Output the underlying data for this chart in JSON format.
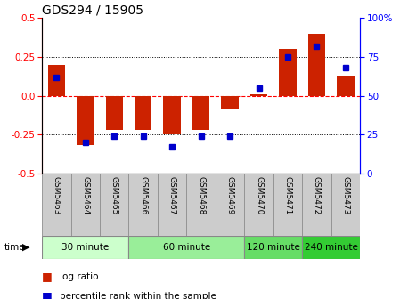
{
  "title": "GDS294 / 15905",
  "samples": [
    "GSM5463",
    "GSM5464",
    "GSM5465",
    "GSM5466",
    "GSM5467",
    "GSM5468",
    "GSM5469",
    "GSM5470",
    "GSM5471",
    "GSM5472",
    "GSM5473"
  ],
  "log_ratio": [
    0.2,
    -0.32,
    -0.22,
    -0.22,
    -0.25,
    -0.22,
    -0.09,
    0.01,
    0.3,
    0.4,
    0.13
  ],
  "percentile": [
    62,
    20,
    24,
    24,
    17,
    24,
    24,
    55,
    75,
    82,
    68
  ],
  "groups": [
    {
      "label": "30 minute",
      "start": 0,
      "end": 3,
      "color": "#ccffcc"
    },
    {
      "label": "60 minute",
      "start": 3,
      "end": 7,
      "color": "#99ee99"
    },
    {
      "label": "120 minute",
      "start": 7,
      "end": 9,
      "color": "#66dd66"
    },
    {
      "label": "240 minute",
      "start": 9,
      "end": 11,
      "color": "#33cc33"
    }
  ],
  "bar_color": "#cc2200",
  "dot_color": "#0000cc",
  "ylim_left": [
    -0.5,
    0.5
  ],
  "ylim_right": [
    0,
    100
  ],
  "yticks_left": [
    -0.5,
    -0.25,
    0.0,
    0.25,
    0.5
  ],
  "yticks_right": [
    0,
    25,
    50,
    75,
    100
  ],
  "hlines": [
    -0.25,
    0.0,
    0.25
  ],
  "hline_colors": [
    "black",
    "red",
    "black"
  ],
  "hline_styles": [
    "dotted",
    "dashed",
    "dotted"
  ],
  "background_color": "#ffffff",
  "plot_bg_color": "#ffffff",
  "sample_bg_color": "#cccccc",
  "group_colors": [
    "#ccffcc",
    "#99ee99",
    "#66dd66",
    "#33cc33"
  ]
}
